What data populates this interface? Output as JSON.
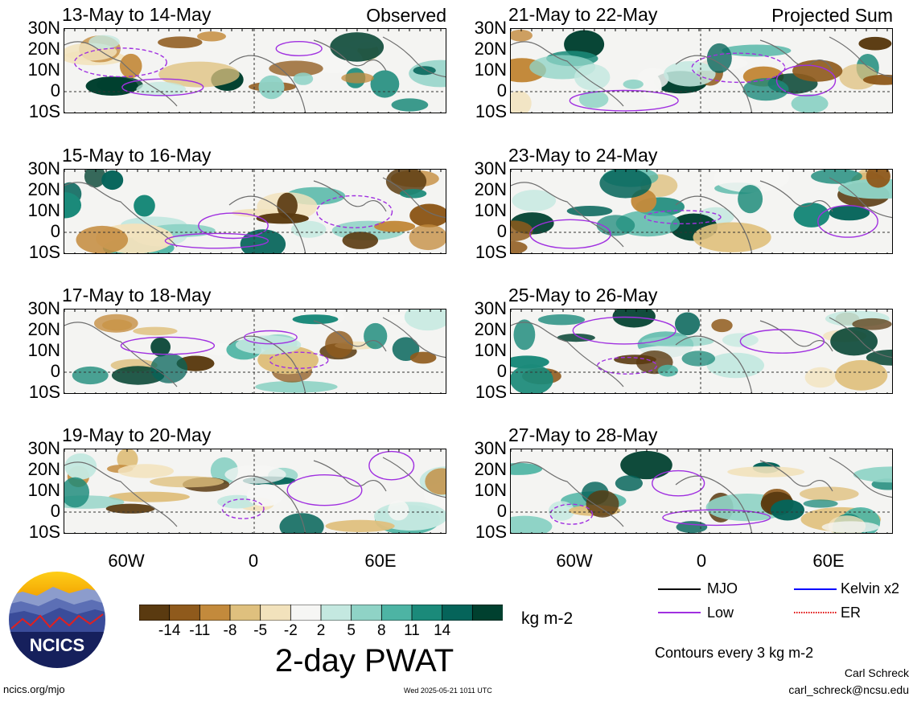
{
  "columns": [
    {
      "tag": "Observed",
      "panels": [
        {
          "title": "13-May to 14-May"
        },
        {
          "title": "15-May to 16-May"
        },
        {
          "title": "17-May to 18-May"
        },
        {
          "title": "19-May to 20-May"
        }
      ]
    },
    {
      "tag": "Projected Sum",
      "panels": [
        {
          "title": "21-May to 22-May"
        },
        {
          "title": "23-May to 24-May"
        },
        {
          "title": "25-May to 26-May"
        },
        {
          "title": "27-May to 28-May"
        }
      ]
    }
  ],
  "lat_labels": [
    "30N",
    "20N",
    "10N",
    "0",
    "10S"
  ],
  "lon_labels": [
    "60W",
    "0",
    "60E"
  ],
  "colorbar": {
    "colors": [
      "#5a3a10",
      "#8f5a1c",
      "#c38a3c",
      "#dfc07e",
      "#f2e2bc",
      "#f6f6f4",
      "#c4e8e0",
      "#8fd3c6",
      "#4db4a4",
      "#1b8a7a",
      "#05645a",
      "#00402f"
    ],
    "tick_labels": [
      "-14",
      "-11",
      "-8",
      "-5",
      "-2",
      "2",
      "5",
      "8",
      "11",
      "14"
    ],
    "units": "kg m-2",
    "title": "2-day PWAT"
  },
  "legend": {
    "items": [
      {
        "label": "MJO",
        "color": "#000000",
        "style": "solid"
      },
      {
        "label": "Kelvin x2",
        "color": "#0000ff",
        "style": "solid"
      },
      {
        "label": "Low",
        "color": "#a030e0",
        "style": "solid"
      },
      {
        "label": "ER",
        "color": "#e00000",
        "style": "dotted"
      }
    ],
    "contour_note": "Contours every 3 kg m-2"
  },
  "logo": {
    "text": "NCICS"
  },
  "footer": {
    "site": "ncics.org/mjo",
    "timestamp": "Wed 2025-05-21 1011 UTC",
    "author": "Carl Schreck",
    "email": "carl_schreck@ncsu.edu"
  }
}
